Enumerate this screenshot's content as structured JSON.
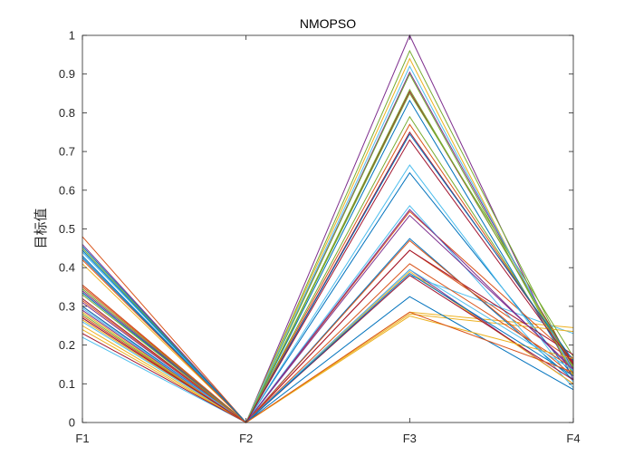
{
  "chart_data": {
    "type": "line",
    "chart_style": "parallel-coordinates",
    "title": "NMOPSO",
    "xlabel": "",
    "ylabel": "目标值",
    "categories": [
      "F1",
      "F2",
      "F3",
      "F4"
    ],
    "ylim": [
      0,
      1
    ],
    "yticks": [
      "0",
      "0.1",
      "0.2",
      "0.3",
      "0.4",
      "0.5",
      "0.6",
      "0.7",
      "0.8",
      "0.9",
      "1"
    ],
    "grid": false,
    "box": true,
    "colors": [
      "#0072BD",
      "#D95319",
      "#EDB120",
      "#7E2F8E",
      "#77AC30",
      "#4DBEEE",
      "#A2142F"
    ],
    "series": [
      {
        "values": [
          0.455,
          0.0,
          0.832,
          0.128
        ]
      },
      {
        "values": [
          0.48,
          0.0,
          0.445,
          0.16
        ]
      },
      {
        "values": [
          0.24,
          0.0,
          0.285,
          0.245
        ]
      },
      {
        "values": [
          0.46,
          0.0,
          1.0,
          0.11
        ]
      },
      {
        "values": [
          0.335,
          0.0,
          0.96,
          0.14
        ]
      },
      {
        "values": [
          0.22,
          0.0,
          0.38,
          0.23
        ]
      },
      {
        "values": [
          0.355,
          0.0,
          0.855,
          0.15
        ]
      },
      {
        "values": [
          0.43,
          0.0,
          0.645,
          0.12
        ]
      },
      {
        "values": [
          0.355,
          0.0,
          0.545,
          0.165
        ]
      },
      {
        "values": [
          0.265,
          0.0,
          0.28,
          0.235
        ]
      },
      {
        "values": [
          0.31,
          0.0,
          0.905,
          0.135
        ]
      },
      {
        "values": [
          0.28,
          0.0,
          0.79,
          0.145
        ]
      },
      {
        "values": [
          0.44,
          0.0,
          0.665,
          0.105
        ]
      },
      {
        "values": [
          0.32,
          0.0,
          0.75,
          0.155
        ]
      },
      {
        "values": [
          0.425,
          0.0,
          0.475,
          0.11
        ]
      },
      {
        "values": [
          0.35,
          0.0,
          0.41,
          0.14
        ]
      },
      {
        "values": [
          0.285,
          0.0,
          0.94,
          0.12
        ]
      },
      {
        "values": [
          0.27,
          0.0,
          0.395,
          0.1
        ]
      },
      {
        "values": [
          0.345,
          0.0,
          0.85,
          0.17
        ]
      },
      {
        "values": [
          0.44,
          0.0,
          0.56,
          0.09
        ]
      },
      {
        "values": [
          0.3,
          0.0,
          0.445,
          0.175
        ]
      },
      {
        "values": [
          0.335,
          0.0,
          0.325,
          0.085
        ]
      },
      {
        "values": [
          0.275,
          0.0,
          0.77,
          0.15
        ]
      },
      {
        "values": [
          0.41,
          0.0,
          0.39,
          0.1
        ]
      },
      {
        "values": [
          0.34,
          0.0,
          0.535,
          0.14
        ]
      },
      {
        "values": [
          0.45,
          0.0,
          0.9,
          0.125
        ]
      },
      {
        "values": [
          0.26,
          0.0,
          0.92,
          0.13
        ]
      },
      {
        "values": [
          0.23,
          0.0,
          0.38,
          0.11
        ]
      },
      {
        "values": [
          0.3,
          0.0,
          0.745,
          0.16
        ]
      },
      {
        "values": [
          0.42,
          0.0,
          0.47,
          0.12
        ]
      },
      {
        "values": [
          0.25,
          0.0,
          0.275,
          0.165
        ]
      },
      {
        "values": [
          0.29,
          0.0,
          0.55,
          0.135
        ]
      },
      {
        "values": [
          0.33,
          0.0,
          0.86,
          0.145
        ]
      },
      {
        "values": [
          0.295,
          0.0,
          0.395,
          0.135
        ]
      },
      {
        "values": [
          0.27,
          0.0,
          0.73,
          0.15
        ]
      },
      {
        "values": [
          0.445,
          0.0,
          0.385,
          0.12
        ]
      },
      {
        "values": [
          0.315,
          0.0,
          0.285,
          0.13
        ]
      }
    ]
  }
}
